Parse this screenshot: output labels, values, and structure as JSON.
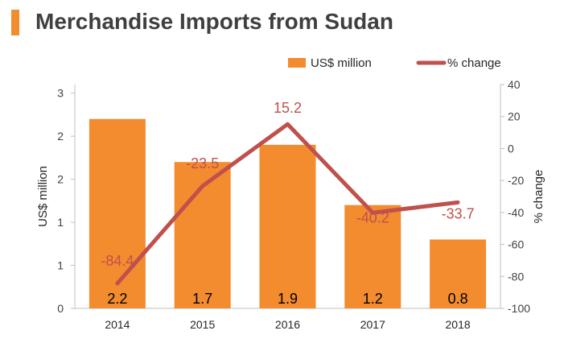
{
  "title": "Merchandise Imports from Sudan",
  "colors": {
    "accent": "#f28c2f",
    "bar": "#f28c2f",
    "line": "#c0504d",
    "text": "#404040",
    "axis": "#bfbfbf"
  },
  "chart_data": {
    "type": "bar",
    "categories": [
      "2014",
      "2015",
      "2016",
      "2017",
      "2018"
    ],
    "series": [
      {
        "name": "US$ million",
        "type": "bar",
        "axis": "left",
        "values": [
          2.2,
          1.7,
          1.9,
          1.2,
          0.8
        ],
        "data_labels": [
          "2.2",
          "1.7",
          "1.9",
          "1.2",
          "0.8"
        ],
        "color": "#f28c2f"
      },
      {
        "name": "% change",
        "type": "line",
        "axis": "right",
        "values": [
          -84.4,
          -23.5,
          15.2,
          -40.2,
          -33.7
        ],
        "data_labels": [
          "-84.4",
          "-23.5",
          "15.2",
          "-40.2",
          "-33.7"
        ],
        "color": "#c0504d"
      }
    ],
    "ylabel": "US$ million",
    "ylim": [
      0,
      2.6
    ],
    "yticks": [
      0,
      0.5,
      1,
      1.5,
      2,
      2.5
    ],
    "ytick_labels": [
      "0",
      "1",
      "1",
      "2",
      "2",
      "3"
    ],
    "y2label": "% change",
    "y2lim": [
      -100,
      40
    ],
    "y2ticks": [
      -100,
      -80,
      -60,
      -40,
      -20,
      0,
      20,
      40
    ],
    "y2tick_labels": [
      "-100",
      "-80",
      "-60",
      "-40",
      "-20",
      "0",
      "20",
      "40"
    ],
    "legend": "top-right",
    "grid": false
  }
}
